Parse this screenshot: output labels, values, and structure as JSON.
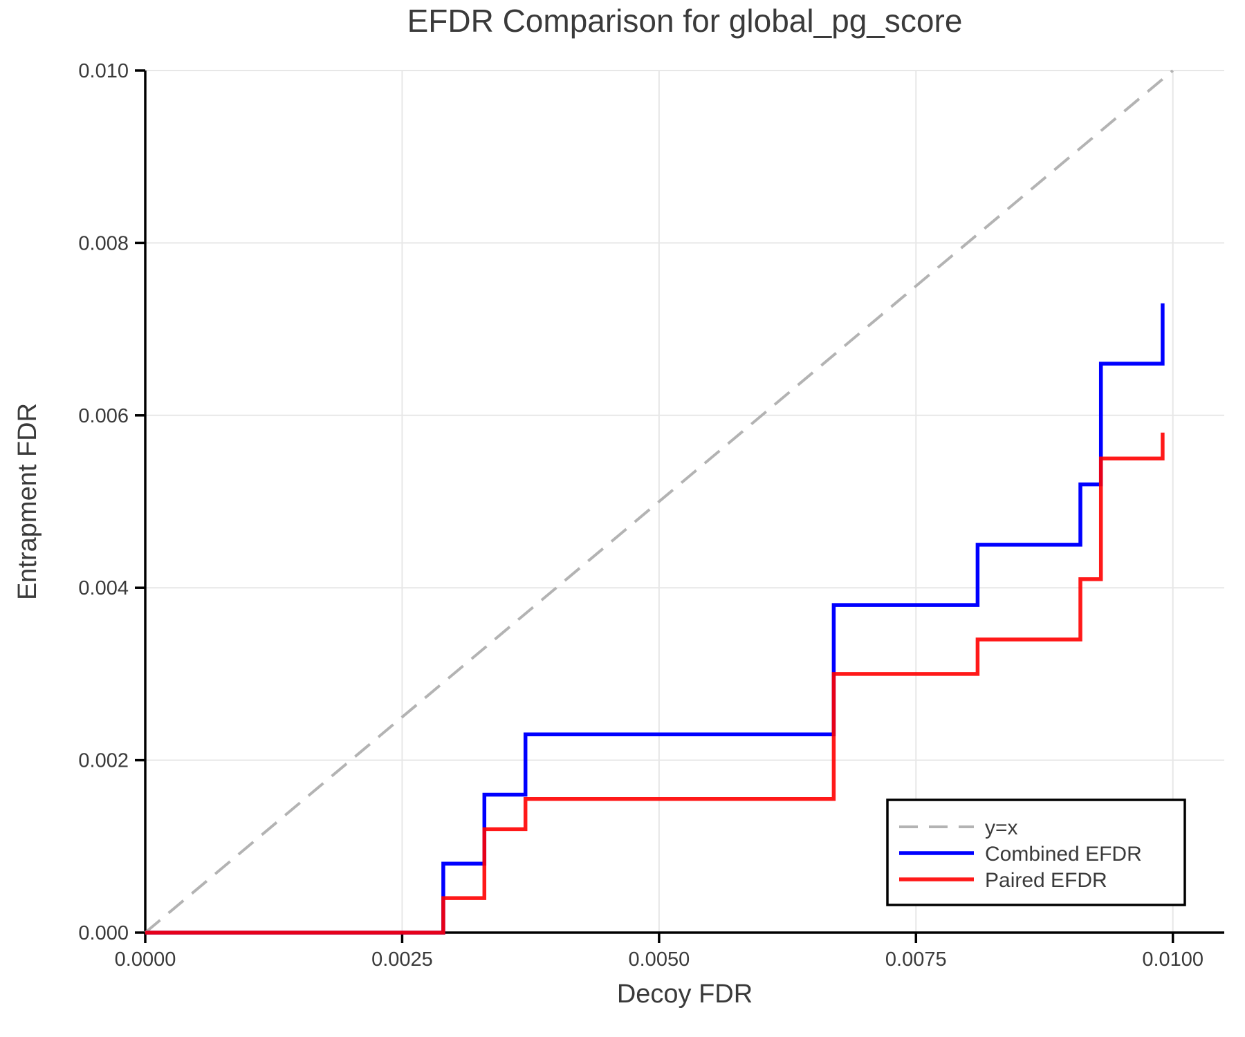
{
  "chart_data": {
    "type": "line",
    "subtype": "step-post",
    "title": "EFDR Comparison for global_pg_score",
    "xlabel": "Decoy FDR",
    "ylabel": "Entrapment FDR",
    "xlim": [
      0,
      0.0105
    ],
    "ylim": [
      0,
      0.01
    ],
    "grid": true,
    "x_ticks": {
      "values": [
        0.0,
        0.0025,
        0.005,
        0.0075,
        0.01
      ],
      "labels": [
        "0.0000",
        "0.0025",
        "0.0050",
        "0.0075",
        "0.0100"
      ]
    },
    "y_ticks": {
      "values": [
        0.0,
        0.002,
        0.004,
        0.006,
        0.008,
        0.01
      ],
      "labels": [
        "0.000",
        "0.002",
        "0.004",
        "0.006",
        "0.008",
        "0.010"
      ]
    },
    "legend": {
      "position": "lower right",
      "entries": [
        {
          "label": "y=x",
          "color": "#b3b3b3",
          "dashed": true,
          "opacity": 1.0
        },
        {
          "label": "Combined EFDR",
          "color": "#0000ff",
          "dashed": false,
          "opacity": 1.0
        },
        {
          "label": "Paired EFDR",
          "color": "#ff0000",
          "dashed": false,
          "opacity": 0.9
        }
      ]
    },
    "series": [
      {
        "name": "y=x",
        "style": "dashed",
        "color": "#b3b3b3",
        "opacity": 1.0,
        "width": 4,
        "step": false,
        "points": [
          [
            0,
            0
          ],
          [
            0.01,
            0.01
          ]
        ]
      },
      {
        "name": "Combined EFDR",
        "style": "solid",
        "color": "#0000ff",
        "opacity": 1.0,
        "width": 5.5,
        "step": true,
        "points": [
          [
            0.0,
            0.0
          ],
          [
            0.0029,
            0.0008
          ],
          [
            0.0033,
            0.0016
          ],
          [
            0.0037,
            0.0023
          ],
          [
            0.0067,
            0.0038
          ],
          [
            0.0081,
            0.0045
          ],
          [
            0.0091,
            0.0052
          ],
          [
            0.0093,
            0.0066
          ],
          [
            0.0099,
            0.0073
          ]
        ]
      },
      {
        "name": "Paired EFDR",
        "style": "solid",
        "color": "#ff0000",
        "opacity": 0.9,
        "width": 5.5,
        "step": true,
        "points": [
          [
            0.0,
            0.0
          ],
          [
            0.0029,
            0.0004
          ],
          [
            0.0033,
            0.0012
          ],
          [
            0.0037,
            0.00155
          ],
          [
            0.0067,
            0.003
          ],
          [
            0.0081,
            0.0034
          ],
          [
            0.0091,
            0.0041
          ],
          [
            0.0093,
            0.0055
          ],
          [
            0.0099,
            0.0058
          ]
        ]
      }
    ],
    "colors": {
      "background": "#ffffff",
      "grid": "#e7e7e7",
      "spine": "#000000",
      "tick": "#000000",
      "text": "#3a3a3a",
      "legend_border": "#000000",
      "legend_background": "#ffffff"
    }
  }
}
